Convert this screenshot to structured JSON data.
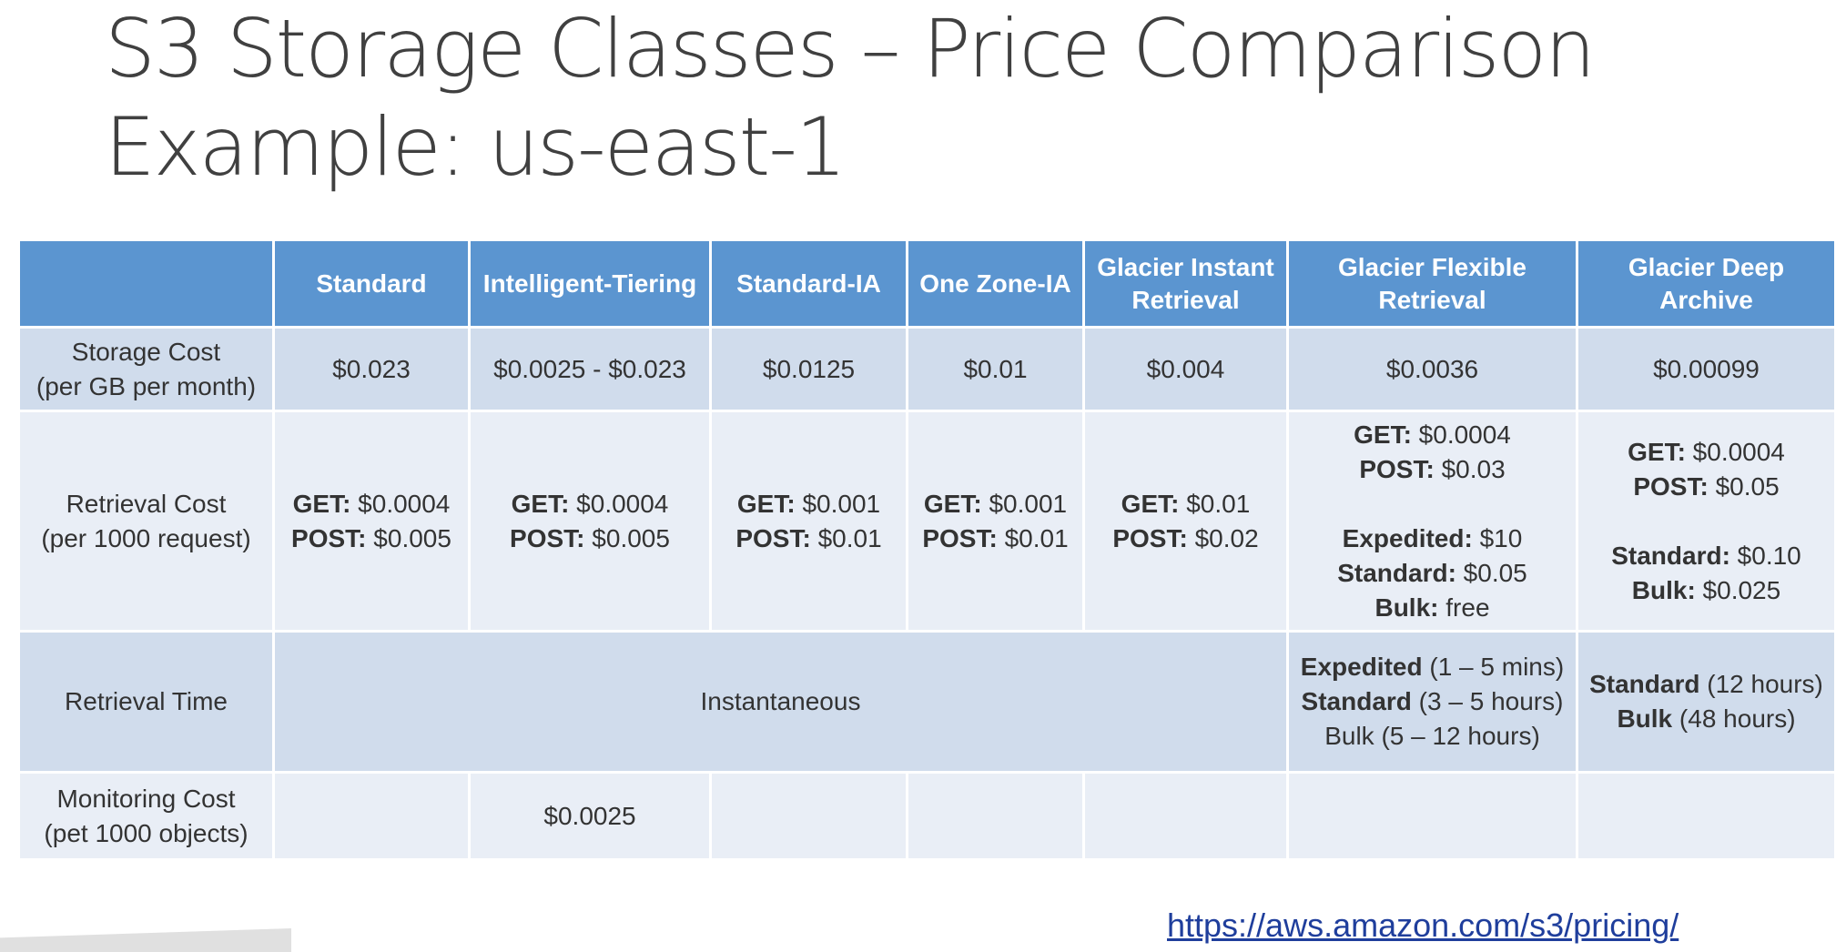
{
  "title": {
    "line1": "S3 Storage Classes – Price Comparison",
    "line2": "Example: us-east-1"
  },
  "table": {
    "headers": [
      "",
      "Standard",
      "Intelligent-Tiering",
      "Standard-IA",
      "One Zone-IA",
      "Glacier Instant Retrieval",
      "Glacier Flexible Retrieval",
      "Glacier Deep Archive"
    ],
    "storage_cost": {
      "label_line1": "Storage Cost",
      "label_line2": "(per GB per month)",
      "values": [
        "$0.023",
        "$0.0025 - $0.023",
        "$0.0125",
        "$0.01",
        "$0.004",
        "$0.0036",
        "$0.00099"
      ]
    },
    "retrieval_cost": {
      "label_line1": "Retrieval Cost",
      "label_line2": "(per 1000 request)",
      "standard": {
        "get_key": "GET:",
        "get_val": " $0.0004",
        "post_key": "POST:",
        "post_val": " $0.005"
      },
      "intelligent": {
        "get_key": "GET:",
        "get_val": " $0.0004",
        "post_key": "POST:",
        "post_val": " $0.005"
      },
      "standard_ia": {
        "get_key": "GET:",
        "get_val": " $0.001",
        "post_key": "POST:",
        "post_val": " $0.01"
      },
      "one_zone": {
        "get_key": "GET:",
        "get_val": " $0.001",
        "post_key": "POST:",
        "post_val": " $0.01"
      },
      "glacier_instant": {
        "get_key": "GET:",
        "get_val": " $0.01",
        "post_key": "POST:",
        "post_val": " $0.02"
      },
      "glacier_flexible": {
        "get_key": "GET:",
        "get_val": " $0.0004",
        "post_key": "POST:",
        "post_val": " $0.03",
        "expedited_key": "Expedited:",
        "expedited_val": " $10",
        "standard_key": "Standard:",
        "standard_val": " $0.05",
        "bulk_key": "Bulk:",
        "bulk_val": " free"
      },
      "glacier_deep": {
        "get_key": "GET:",
        "get_val": " $0.0004",
        "post_key": "POST:",
        "post_val": " $0.05",
        "standard_key": "Standard:",
        "standard_val": " $0.10",
        "bulk_key": "Bulk:",
        "bulk_val": " $0.025"
      }
    },
    "retrieval_time": {
      "label": "Retrieval Time",
      "instant": "Instantaneous",
      "glacier_flexible": {
        "expedited_key": "Expedited",
        "expedited_val": " (1 – 5 mins)",
        "standard_key": "Standard",
        "standard_val": " (3 – 5 hours)",
        "bulk": "Bulk (5 – 12 hours)"
      },
      "glacier_deep": {
        "standard_key": "Standard",
        "standard_val": " (12 hours)",
        "bulk_key": "Bulk",
        "bulk_val": " (48 hours)"
      }
    },
    "monitoring_cost": {
      "label_line1": "Monitoring Cost",
      "label_line2": "(pet 1000 objects)",
      "intelligent": "$0.0025"
    }
  },
  "link": {
    "text": "https://aws.amazon.com/s3/pricing/"
  },
  "colors": {
    "header": "#5b95d0",
    "row_light": "#e9eef6",
    "row_dark": "#d0dcec",
    "link": "#1f3e9c"
  }
}
